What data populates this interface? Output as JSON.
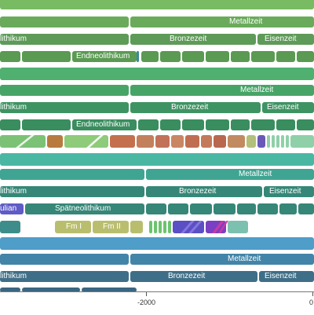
{
  "groups": [
    {
      "metallzeit": "Metallzeit",
      "lithikum": "lithikum",
      "bronzezeit": "Bronzezeit",
      "eisenzeit": "Eisenzeit",
      "endneolithikum": "Endneolithikum"
    },
    {
      "metallzeit": "Metallzeit",
      "lithikum": "lithikum",
      "bronzezeit": "Bronzezeit",
      "eisenzeit": "Eisenzeit",
      "endneolithikum": "Endneolithikum"
    },
    {
      "metallzeit": "Metallzeit",
      "lithikum": "lithikum",
      "bronzezeit": "Bronzezeit",
      "eisenzeit": "Eisenzeit",
      "ulian": "ulian",
      "spaetneolithikum": "Spätneolithikum",
      "fm1": "Fm I",
      "fm2": "Fm II"
    },
    {
      "metallzeit": "Metallzeit",
      "lithikum": "lithikum",
      "bronzezeit": "Bronzezeit",
      "eisenzeit": "Eisenzeit"
    }
  ],
  "axis": {
    "tick_label": "-2000",
    "right_label": "0"
  },
  "colors": {
    "g1": "#74b55c",
    "g1_dark": "#5a9a52",
    "g2": "#4cae6a",
    "g2_dark": "#3d8f61",
    "g3": "#45b6a3",
    "g3_dark": "#34877b",
    "g4": "#4a96c2",
    "g4_dark": "#3e6f8a"
  }
}
